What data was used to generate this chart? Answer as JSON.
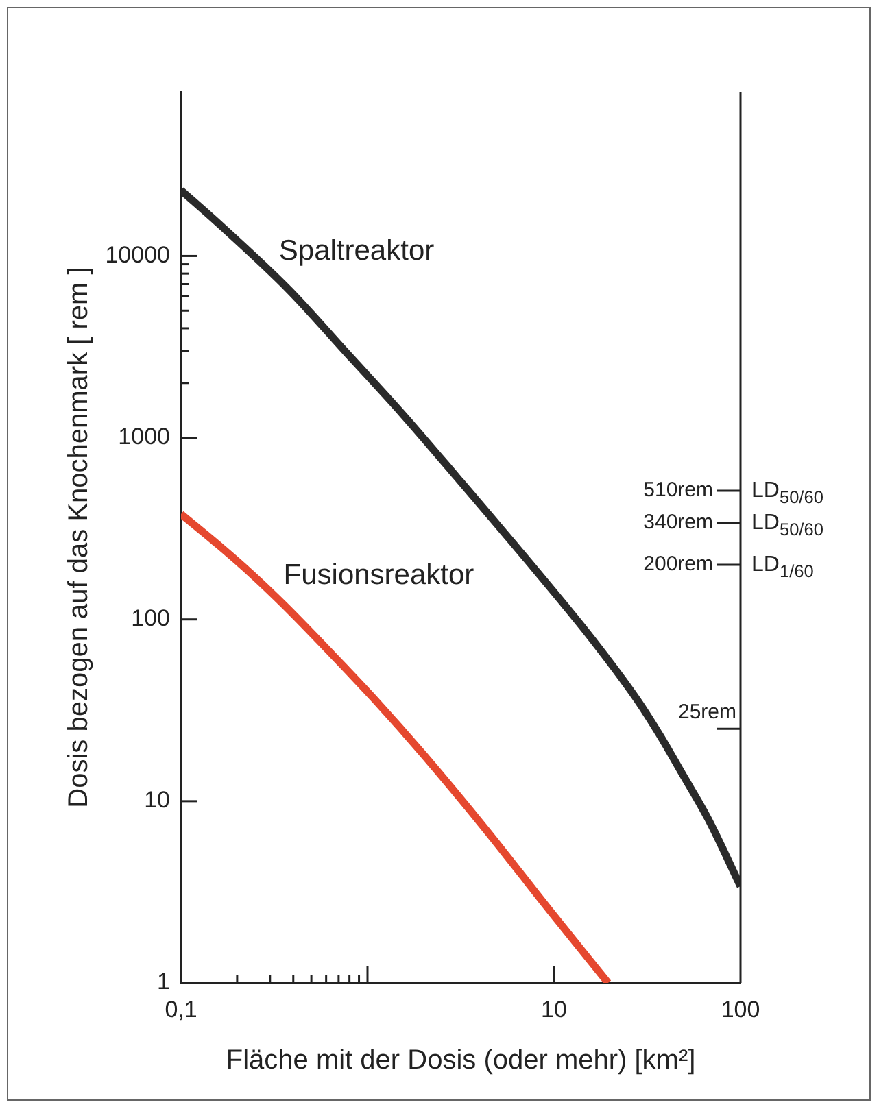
{
  "chart_data": {
    "type": "line",
    "xlabel": "Fläche mit der Dosis (oder mehr) [km²]",
    "ylabel": "Dosis bezogen auf das Knochenmark [ rem ]",
    "log": "xy",
    "xlim": [
      0.1,
      100
    ],
    "ylim": [
      1,
      80000
    ],
    "xticks": [
      {
        "value": 0.1,
        "label": "0,1"
      },
      {
        "value": 0.2,
        "label": null
      },
      {
        "value": 0.3,
        "label": null
      },
      {
        "value": 0.4,
        "label": null
      },
      {
        "value": 0.5,
        "label": null
      },
      {
        "value": 0.6,
        "label": null
      },
      {
        "value": 0.7,
        "label": null
      },
      {
        "value": 0.8,
        "label": null
      },
      {
        "value": 0.9,
        "label": null
      },
      {
        "value": 1,
        "label": null
      },
      10,
      100
    ],
    "yticks": [
      1,
      10,
      100,
      1000,
      {
        "value": 2000,
        "label": null
      },
      {
        "value": 3000,
        "label": null
      },
      {
        "value": 4000,
        "label": null
      },
      {
        "value": 5000,
        "label": null
      },
      {
        "value": 6000,
        "label": null
      },
      {
        "value": 7000,
        "label": null
      },
      {
        "value": 8000,
        "label": null
      },
      {
        "value": 9000,
        "label": null
      },
      10000
    ],
    "ref_lines": [
      {
        "axis": "y",
        "value": 510,
        "label": "510rem"
      },
      {
        "axis": "y",
        "value": 340,
        "label": "340rem"
      },
      {
        "axis": "y",
        "value": 200,
        "label": "200rem"
      },
      {
        "axis": "y",
        "value": 25,
        "label": "25rem"
      }
    ],
    "annotations": [
      "LD$_{50/60}$",
      "LD$_{50/60}$",
      "LD$_{1/60}$"
    ],
    "series": [
      {
        "name": "Spaltreaktor",
        "color": "#2a2a2a",
        "x": [
          0.1,
          0.16,
          0.38,
          0.78,
          1.54,
          3,
          8,
          16,
          28,
          37,
          49,
          67,
          100
        ],
        "values": [
          23000,
          15000,
          6500,
          2900,
          1350,
          610,
          186,
          78,
          36,
          23,
          14,
          8,
          3.4
        ]
      },
      {
        "name": "Fusionsreaktor",
        "color": "#e5482f",
        "x": [
          0.1,
          0.16,
          0.24,
          0.36,
          0.63,
          1.1,
          2,
          4.3,
          9.5,
          19.5
        ],
        "values": [
          380,
          255,
          177,
          119,
          66,
          36,
          18,
          7,
          2.5,
          1
        ]
      }
    ],
    "grid": false,
    "legend": false,
    "marker": "none",
    "line_style": "solid"
  }
}
